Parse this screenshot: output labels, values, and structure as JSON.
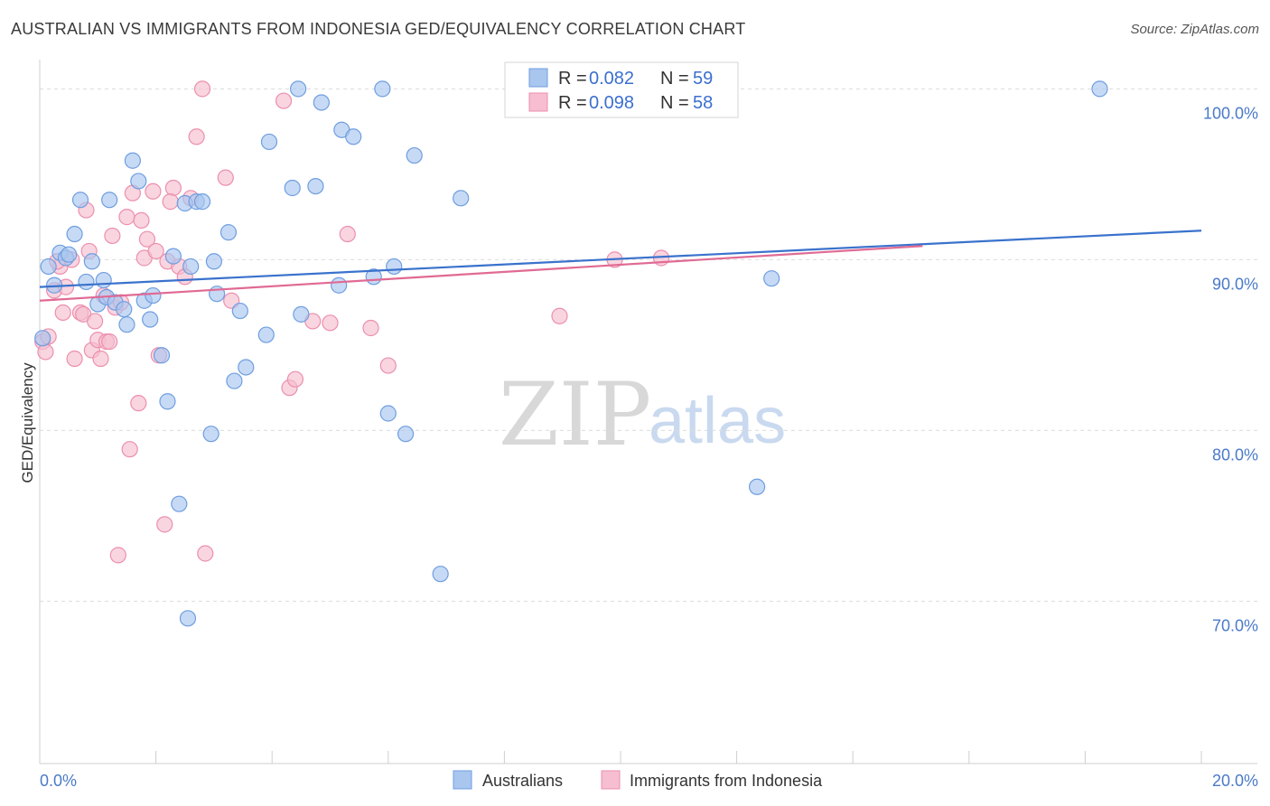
{
  "header": {
    "title": "AUSTRALIAN VS IMMIGRANTS FROM INDONESIA GED/EQUIVALENCY CORRELATION CHART",
    "source": "Source: ZipAtlas.com"
  },
  "watermark": {
    "zip": "ZIP",
    "atlas": "atlas"
  },
  "legend": {
    "row1": {
      "r_label": "R = ",
      "r_value": "0.082",
      "n_label": "N = ",
      "n_value": "59"
    },
    "row2": {
      "r_label": "R = ",
      "r_value": "0.098",
      "n_label": "N = ",
      "n_value": "58"
    }
  },
  "colors": {
    "blue_fill": "#a9c6ef",
    "blue_stroke": "#6f9ee0",
    "blue_line": "#3a72cc",
    "pink_fill": "#f6bed0",
    "pink_stroke": "#ec8fae",
    "pink_line": "#e06a94",
    "grid": "#dcdcdc",
    "tick_text": "#4a7ac9"
  },
  "chart_data": {
    "type": "scatter",
    "title": "AUSTRALIAN VS IMMIGRANTS FROM INDONESIA GED/EQUIVALENCY CORRELATION CHART",
    "xlabel": "",
    "ylabel": "GED/Equivalency",
    "xlim": [
      0,
      20
    ],
    "ylim": [
      60.5,
      101.5
    ],
    "x_tick_labels": [
      "0.0%",
      "20.0%"
    ],
    "y_ticks": [
      {
        "value": 100,
        "label": "100.0%"
      },
      {
        "value": 90,
        "label": "90.0%"
      },
      {
        "value": 80,
        "label": "80.0%"
      },
      {
        "value": 70,
        "label": "70.0%"
      }
    ],
    "grid": true,
    "series": [
      {
        "name": "Australians",
        "color": "#a9c6ef",
        "R": 0.082,
        "N": 59,
        "trend": {
          "x": [
            0,
            20
          ],
          "y": [
            88.4,
            91.7
          ]
        },
        "points": [
          [
            0.15,
            89.6
          ],
          [
            0.25,
            88.5
          ],
          [
            0.35,
            90.4
          ],
          [
            0.45,
            90.1
          ],
          [
            0.5,
            90.3
          ],
          [
            0.6,
            91.5
          ],
          [
            0.7,
            93.5
          ],
          [
            0.8,
            88.7
          ],
          [
            0.9,
            89.9
          ],
          [
            1.0,
            87.4
          ],
          [
            1.1,
            88.8
          ],
          [
            1.15,
            87.8
          ],
          [
            1.2,
            93.5
          ],
          [
            1.3,
            87.5
          ],
          [
            1.45,
            87.1
          ],
          [
            1.5,
            86.2
          ],
          [
            1.6,
            95.8
          ],
          [
            1.7,
            94.6
          ],
          [
            1.8,
            87.6
          ],
          [
            1.9,
            86.5
          ],
          [
            1.95,
            87.9
          ],
          [
            2.1,
            84.4
          ],
          [
            2.2,
            81.7
          ],
          [
            2.3,
            90.2
          ],
          [
            2.4,
            75.7
          ],
          [
            2.5,
            93.3
          ],
          [
            2.55,
            69.0
          ],
          [
            2.6,
            89.6
          ],
          [
            2.7,
            93.4
          ],
          [
            2.8,
            93.4
          ],
          [
            2.95,
            79.8
          ],
          [
            3.0,
            89.9
          ],
          [
            3.05,
            88.0
          ],
          [
            3.25,
            91.6
          ],
          [
            3.35,
            82.9
          ],
          [
            3.45,
            87.0
          ],
          [
            3.55,
            83.7
          ],
          [
            3.9,
            85.6
          ],
          [
            3.95,
            96.9
          ],
          [
            4.35,
            94.2
          ],
          [
            4.45,
            100.0
          ],
          [
            4.5,
            86.8
          ],
          [
            4.75,
            94.3
          ],
          [
            4.85,
            99.2
          ],
          [
            5.15,
            88.5
          ],
          [
            5.2,
            97.6
          ],
          [
            5.4,
            97.2
          ],
          [
            5.75,
            89.0
          ],
          [
            5.9,
            100.0
          ],
          [
            6.0,
            81.0
          ],
          [
            6.1,
            89.6
          ],
          [
            6.3,
            79.8
          ],
          [
            6.45,
            96.1
          ],
          [
            6.9,
            71.6
          ],
          [
            7.25,
            93.6
          ],
          [
            12.35,
            76.7
          ],
          [
            12.6,
            88.9
          ],
          [
            18.25,
            100.0
          ],
          [
            0.05,
            85.4
          ]
        ]
      },
      {
        "name": "Immigrants from Indonesia",
        "color": "#f6bed0",
        "R": 0.098,
        "N": 58,
        "trend": {
          "x": [
            0,
            15.2
          ],
          "y": [
            87.6,
            90.8
          ]
        },
        "points": [
          [
            0.05,
            85.2
          ],
          [
            0.15,
            85.5
          ],
          [
            0.25,
            88.2
          ],
          [
            0.35,
            89.6
          ],
          [
            0.4,
            86.9
          ],
          [
            0.45,
            88.4
          ],
          [
            0.55,
            90.0
          ],
          [
            0.6,
            84.2
          ],
          [
            0.7,
            86.9
          ],
          [
            0.75,
            86.8
          ],
          [
            0.8,
            92.9
          ],
          [
            0.85,
            90.5
          ],
          [
            0.9,
            84.7
          ],
          [
            0.95,
            86.4
          ],
          [
            1.0,
            85.3
          ],
          [
            1.05,
            84.2
          ],
          [
            1.1,
            87.9
          ],
          [
            1.15,
            85.2
          ],
          [
            1.2,
            85.2
          ],
          [
            1.25,
            91.4
          ],
          [
            1.3,
            87.2
          ],
          [
            1.4,
            87.5
          ],
          [
            1.5,
            92.5
          ],
          [
            1.55,
            78.9
          ],
          [
            1.6,
            93.9
          ],
          [
            1.7,
            81.6
          ],
          [
            1.75,
            92.3
          ],
          [
            1.8,
            90.1
          ],
          [
            1.85,
            91.2
          ],
          [
            1.95,
            94.0
          ],
          [
            2.0,
            90.5
          ],
          [
            2.05,
            84.4
          ],
          [
            2.15,
            74.5
          ],
          [
            2.2,
            89.9
          ],
          [
            2.3,
            94.2
          ],
          [
            2.4,
            89.6
          ],
          [
            2.5,
            89.0
          ],
          [
            2.6,
            93.6
          ],
          [
            2.7,
            97.2
          ],
          [
            2.8,
            100.0
          ],
          [
            2.85,
            72.8
          ],
          [
            3.2,
            94.8
          ],
          [
            3.3,
            87.6
          ],
          [
            4.2,
            99.3
          ],
          [
            4.3,
            82.5
          ],
          [
            4.4,
            83.0
          ],
          [
            4.7,
            86.4
          ],
          [
            5.0,
            86.3
          ],
          [
            5.3,
            91.5
          ],
          [
            5.7,
            86.0
          ],
          [
            6.0,
            83.8
          ],
          [
            8.95,
            86.7
          ],
          [
            9.9,
            90.0
          ],
          [
            10.7,
            90.1
          ],
          [
            0.1,
            84.6
          ],
          [
            1.35,
            72.7
          ],
          [
            2.25,
            93.4
          ],
          [
            0.3,
            89.9
          ]
        ]
      }
    ]
  },
  "bottom_legend": {
    "items": [
      "Australians",
      "Immigrants from Indonesia"
    ]
  }
}
